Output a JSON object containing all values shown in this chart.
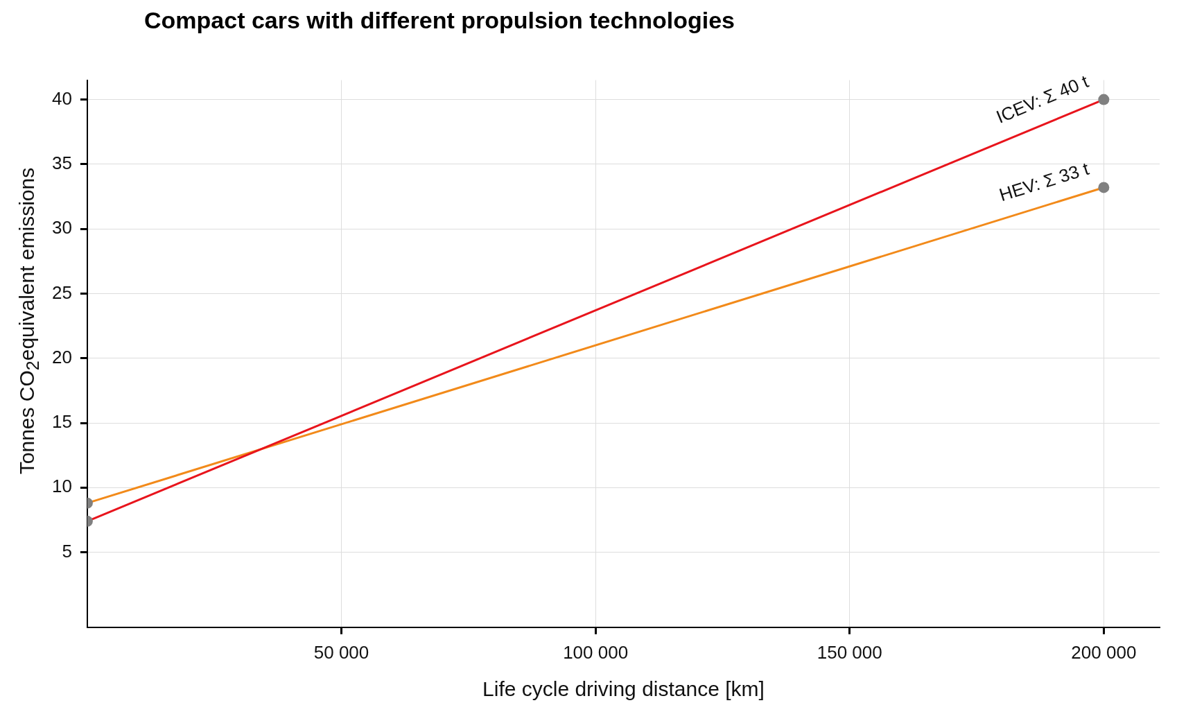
{
  "chart_data": {
    "type": "line",
    "title": "Compact cars with different propulsion technologies",
    "xlabel": "Life cycle driving distance [km]",
    "ylabel": "Tonnes CO$_{2}$equivalent emissions",
    "x": [
      0,
      200000
    ],
    "series": [
      {
        "name": "ICEV: Σ 40 t",
        "color": "#e8141c",
        "values": [
          7.4,
          40
        ]
      },
      {
        "name": "HEV: Σ 33 t",
        "color": "#f28a1a",
        "values": [
          8.8,
          33.2
        ]
      }
    ],
    "xlim": [
      0,
      211000
    ],
    "ylim": [
      -0.8,
      41.5
    ],
    "xticks": [
      {
        "value": 50000,
        "label": "50 000"
      },
      {
        "value": 100000,
        "label": "100 000"
      },
      {
        "value": 150000,
        "label": "150 000"
      },
      {
        "value": 200000,
        "label": "200 000"
      }
    ],
    "yticks": [
      5,
      10,
      15,
      20,
      25,
      30,
      35,
      40
    ],
    "grid": true,
    "legend": false,
    "marker": "circle",
    "line_style": "solid"
  }
}
